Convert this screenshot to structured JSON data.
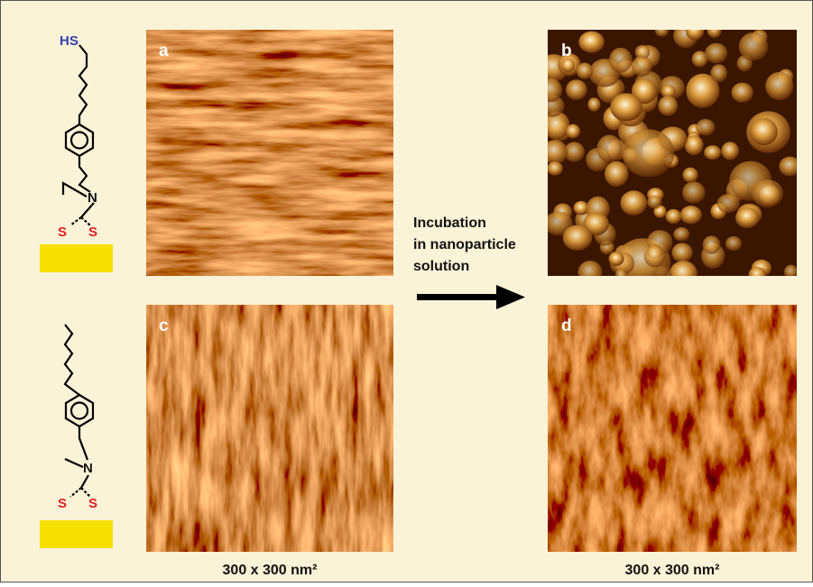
{
  "molecules": [
    {
      "labels": [
        "HS",
        "N",
        "S",
        "S"
      ]
    },
    {
      "labels": [
        "N",
        "S",
        "S"
      ]
    }
  ],
  "panels": [
    {
      "label": "a"
    },
    {
      "label": "b"
    },
    {
      "label": "c"
    },
    {
      "label": "d"
    }
  ],
  "arrow_text": [
    "Incubation",
    "in nanoparticle",
    "solution"
  ],
  "scale_labels": [
    "300 x 300 nm²",
    "300 x 300 nm²"
  ]
}
